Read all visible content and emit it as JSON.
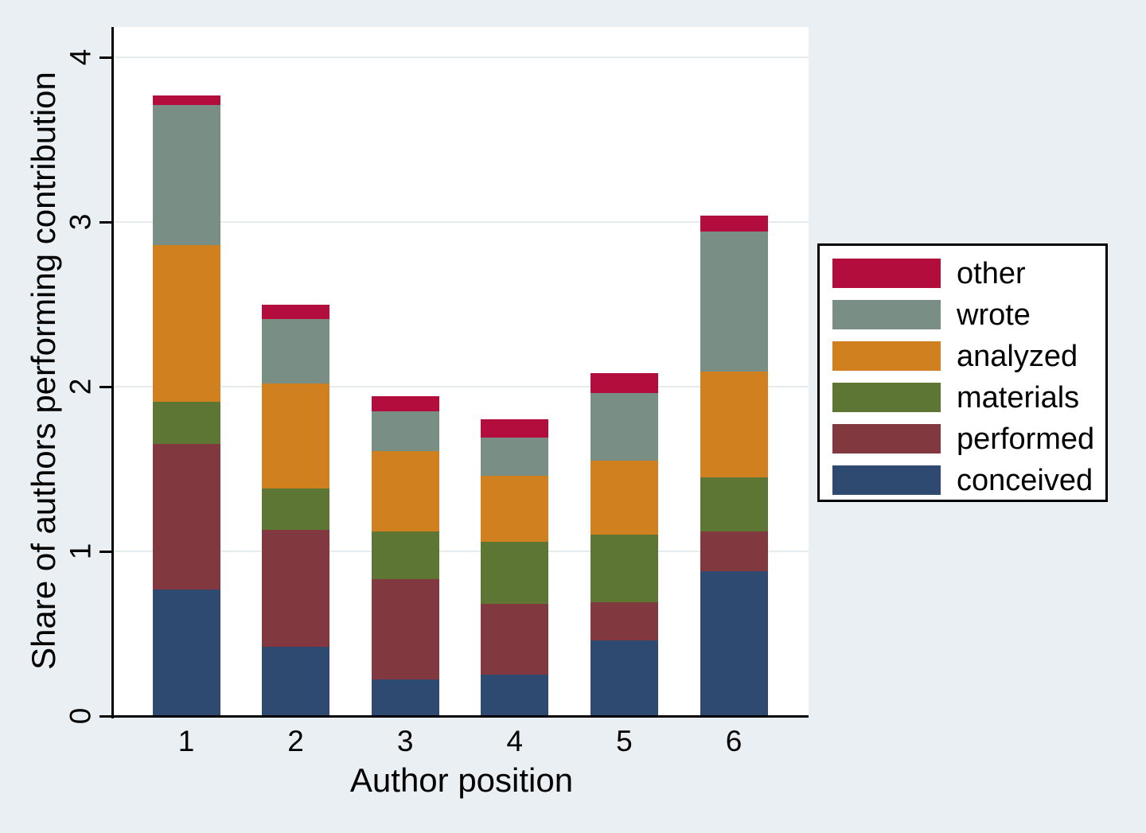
{
  "figure": {
    "background": "#E9EFF2",
    "plot_background": "#FFFFFF",
    "axis_color": "#000000",
    "gridline_color": "#E5ECF0",
    "legend_background": "#FFFFFF",
    "legend_border_color": "#000000"
  },
  "chart_data": {
    "type": "bar",
    "stacked": true,
    "title": "",
    "xlabel": "Author position",
    "ylabel": "Share of authors performing contribution",
    "categories": [
      "1",
      "2",
      "3",
      "4",
      "5",
      "6"
    ],
    "y_ticks": [
      "0",
      "1",
      "2",
      "3",
      "4"
    ],
    "ylim": [
      0,
      4.18
    ],
    "grid": true,
    "legend_position": "right",
    "legend_order": [
      "other",
      "wrote",
      "analyzed",
      "materials",
      "performed",
      "conceived"
    ],
    "series": [
      {
        "name": "conceived",
        "color": "#2F4A70",
        "values": [
          0.77,
          0.42,
          0.22,
          0.25,
          0.46,
          0.88
        ]
      },
      {
        "name": "performed",
        "color": "#81383E",
        "values": [
          0.88,
          0.71,
          0.61,
          0.43,
          0.23,
          0.24
        ]
      },
      {
        "name": "materials",
        "color": "#5D7634",
        "values": [
          0.26,
          0.25,
          0.29,
          0.38,
          0.41,
          0.33
        ]
      },
      {
        "name": "analyzed",
        "color": "#D0801E",
        "values": [
          0.95,
          0.64,
          0.49,
          0.4,
          0.45,
          0.64
        ]
      },
      {
        "name": "wrote",
        "color": "#798F86",
        "values": [
          0.85,
          0.39,
          0.24,
          0.23,
          0.41,
          0.85
        ]
      },
      {
        "name": "other",
        "color": "#B30D3E",
        "values": [
          0.06,
          0.09,
          0.09,
          0.11,
          0.12,
          0.1
        ]
      }
    ],
    "bar_totals": [
      3.77,
      2.5,
      1.94,
      1.8,
      2.08,
      3.04
    ]
  }
}
